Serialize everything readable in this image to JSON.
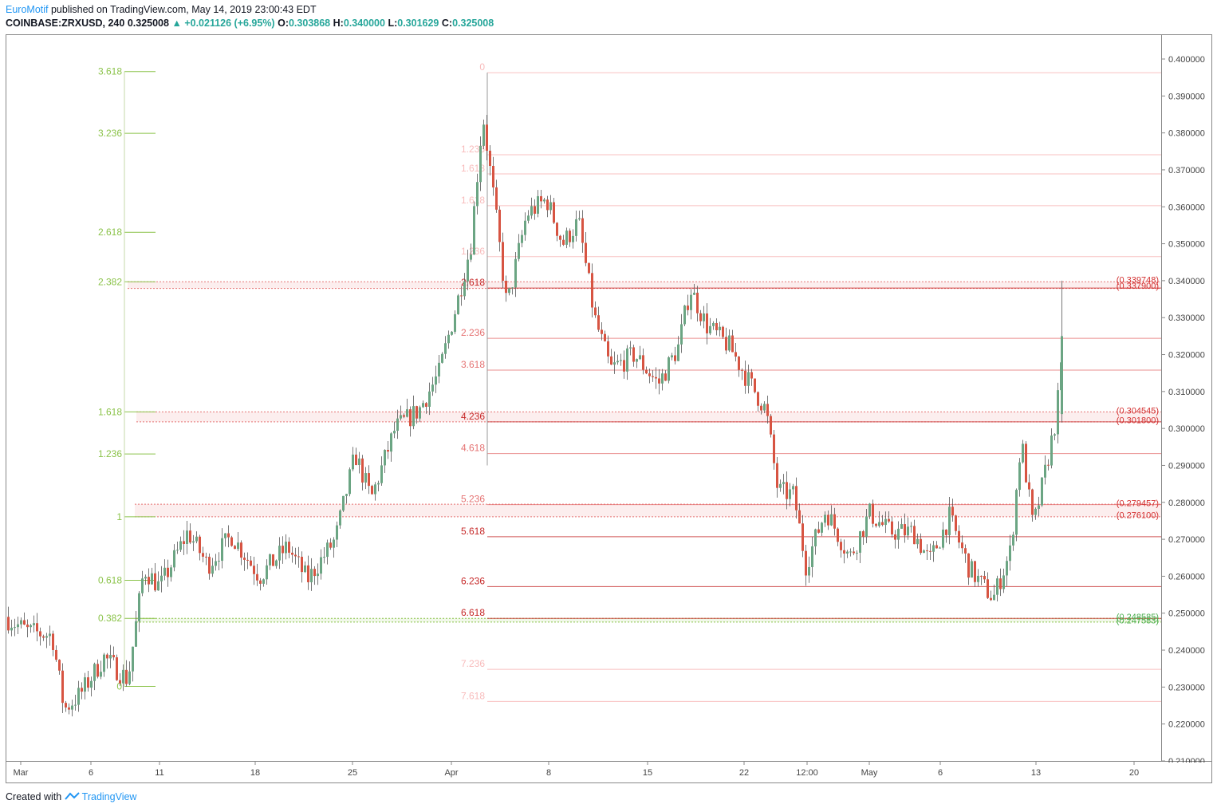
{
  "header": {
    "brand": "EuroMotif",
    "published_text": " published on TradingView.com, May 14, 2019 23:00:43 EDT",
    "symbol": "COINBASE:ZRXUSD, 240",
    "last": "0.325008",
    "change": "+0.021126 (+6.95%)",
    "o_label": "O:",
    "o": "0.303868",
    "h_label": "H:",
    "h": "0.340000",
    "l_label": "L:",
    "l": "0.301629",
    "c_label": "C:",
    "c": "0.325008"
  },
  "footer": {
    "created_with": "Created with",
    "brand": "TradingView"
  },
  "colors": {
    "up": "#6ba583",
    "down": "#d75442",
    "fib_green": "#8bc34a",
    "fib_red": "#e57373",
    "fib_pink": "#f8bbbb"
  },
  "icons": {
    "up_arrow": "triangle-up-icon",
    "logo": "tradingview-logo-icon"
  },
  "chart_data": {
    "type": "candlestick",
    "title": "COINBASE:ZRXUSD, 240",
    "ylim": [
      0.21,
      0.404
    ],
    "price_ticks": [
      "0.400000",
      "0.390000",
      "0.380000",
      "0.370000",
      "0.360000",
      "0.350000",
      "0.340000",
      "0.330000",
      "0.320000",
      "0.310000",
      "0.300000",
      "0.290000",
      "0.280000",
      "0.270000",
      "0.260000",
      "0.250000",
      "0.240000",
      "0.230000",
      "0.220000",
      "0.210000"
    ],
    "time_ticks": [
      "Mar",
      "6",
      "11",
      "18",
      "25",
      "Apr",
      "8",
      "15",
      "22",
      "12:00",
      "May",
      "6",
      "13",
      "20"
    ],
    "grid": false,
    "fib_green": [
      {
        "label": "3.618",
        "value": 0.3966
      },
      {
        "label": "3.236",
        "value": 0.3799
      },
      {
        "label": "2.618",
        "value": 0.3531
      },
      {
        "label": "2.382",
        "value": 0.3397
      },
      {
        "label": "1.618",
        "value": 0.3045
      },
      {
        "label": "1.236",
        "value": 0.2931
      },
      {
        "label": "1",
        "value": 0.2761
      },
      {
        "label": "0.618",
        "value": 0.2589
      },
      {
        "label": "0.382",
        "value": 0.2486
      },
      {
        "label": "0",
        "value": 0.2302
      }
    ],
    "fib_red": [
      {
        "label": "0",
        "value": 0.3963
      },
      {
        "label": "1.236",
        "value": 0.3741
      },
      {
        "label": "1.618",
        "value": 0.3689
      },
      {
        "label": "1.618",
        "value": 0.3603
      },
      {
        "label": "1.236",
        "value": 0.3465
      },
      {
        "label": "2.618",
        "value": 0.338
      },
      {
        "label": "2.236",
        "value": 0.3244
      },
      {
        "label": "3.618",
        "value": 0.3158
      },
      {
        "label": "4.236",
        "value": 0.3018
      },
      {
        "label": "4.618",
        "value": 0.2932
      },
      {
        "label": "5.236",
        "value": 0.2794
      },
      {
        "label": "5.618",
        "value": 0.2707
      },
      {
        "label": "6.236",
        "value": 0.2572
      },
      {
        "label": "6.618",
        "value": 0.2486
      },
      {
        "label": "7.236",
        "value": 0.2348
      },
      {
        "label": "7.618",
        "value": 0.2261
      }
    ],
    "price_labels": [
      {
        "text": "(0.339748)",
        "color": "red"
      },
      {
        "text": "(0.337900)",
        "color": "red"
      },
      {
        "text": "(0.304545)",
        "color": "red"
      },
      {
        "text": "(0.301800)",
        "color": "red"
      },
      {
        "text": "(0.279457)",
        "color": "red"
      },
      {
        "text": "(0.276100)",
        "color": "red"
      },
      {
        "text": "(0.248585)",
        "color": "green"
      },
      {
        "text": "(0.247583)",
        "color": "green"
      }
    ],
    "zones": [
      {
        "from": 0.3397,
        "to": 0.3379,
        "color": "red"
      },
      {
        "from": 0.3045,
        "to": 0.3018,
        "color": "red"
      },
      {
        "from": 0.2795,
        "to": 0.2761,
        "color": "red"
      },
      {
        "from": 0.2486,
        "to": 0.2476,
        "color": "green"
      }
    ],
    "series": [
      {
        "x": 0,
        "close": 0.249
      },
      {
        "x": 30,
        "close": 0.245
      },
      {
        "x": 60,
        "close": 0.244
      },
      {
        "x": 75,
        "close": 0.224
      },
      {
        "x": 95,
        "close": 0.228
      },
      {
        "x": 125,
        "close": 0.238
      },
      {
        "x": 155,
        "close": 0.232
      },
      {
        "x": 175,
        "close": 0.262
      },
      {
        "x": 195,
        "close": 0.257
      },
      {
        "x": 230,
        "close": 0.272
      },
      {
        "x": 255,
        "close": 0.263
      },
      {
        "x": 285,
        "close": 0.271
      },
      {
        "x": 320,
        "close": 0.26
      },
      {
        "x": 355,
        "close": 0.268
      },
      {
        "x": 380,
        "close": 0.259
      },
      {
        "x": 415,
        "close": 0.27
      },
      {
        "x": 440,
        "close": 0.293
      },
      {
        "x": 460,
        "close": 0.281
      },
      {
        "x": 490,
        "close": 0.3
      },
      {
        "x": 520,
        "close": 0.305
      },
      {
        "x": 545,
        "close": 0.315
      },
      {
        "x": 570,
        "close": 0.336
      },
      {
        "x": 585,
        "close": 0.35
      },
      {
        "x": 600,
        "close": 0.385
      },
      {
        "x": 615,
        "close": 0.36
      },
      {
        "x": 630,
        "close": 0.333
      },
      {
        "x": 655,
        "close": 0.358
      },
      {
        "x": 680,
        "close": 0.362
      },
      {
        "x": 700,
        "close": 0.35
      },
      {
        "x": 720,
        "close": 0.356
      },
      {
        "x": 740,
        "close": 0.33
      },
      {
        "x": 760,
        "close": 0.316
      },
      {
        "x": 790,
        "close": 0.32
      },
      {
        "x": 820,
        "close": 0.312
      },
      {
        "x": 845,
        "close": 0.322
      },
      {
        "x": 860,
        "close": 0.338
      },
      {
        "x": 880,
        "close": 0.328
      },
      {
        "x": 910,
        "close": 0.322
      },
      {
        "x": 930,
        "close": 0.314
      },
      {
        "x": 955,
        "close": 0.305
      },
      {
        "x": 970,
        "close": 0.283
      },
      {
        "x": 990,
        "close": 0.282
      },
      {
        "x": 1005,
        "close": 0.263
      },
      {
        "x": 1030,
        "close": 0.278
      },
      {
        "x": 1060,
        "close": 0.265
      },
      {
        "x": 1085,
        "close": 0.277
      },
      {
        "x": 1110,
        "close": 0.272
      },
      {
        "x": 1140,
        "close": 0.272
      },
      {
        "x": 1160,
        "close": 0.264
      },
      {
        "x": 1185,
        "close": 0.276
      },
      {
        "x": 1210,
        "close": 0.262
      },
      {
        "x": 1240,
        "close": 0.254
      },
      {
        "x": 1262,
        "close": 0.267
      },
      {
        "x": 1275,
        "close": 0.297
      },
      {
        "x": 1290,
        "close": 0.273
      },
      {
        "x": 1305,
        "close": 0.288
      },
      {
        "x": 1318,
        "close": 0.302
      },
      {
        "x": 1330,
        "close": 0.325
      }
    ]
  }
}
